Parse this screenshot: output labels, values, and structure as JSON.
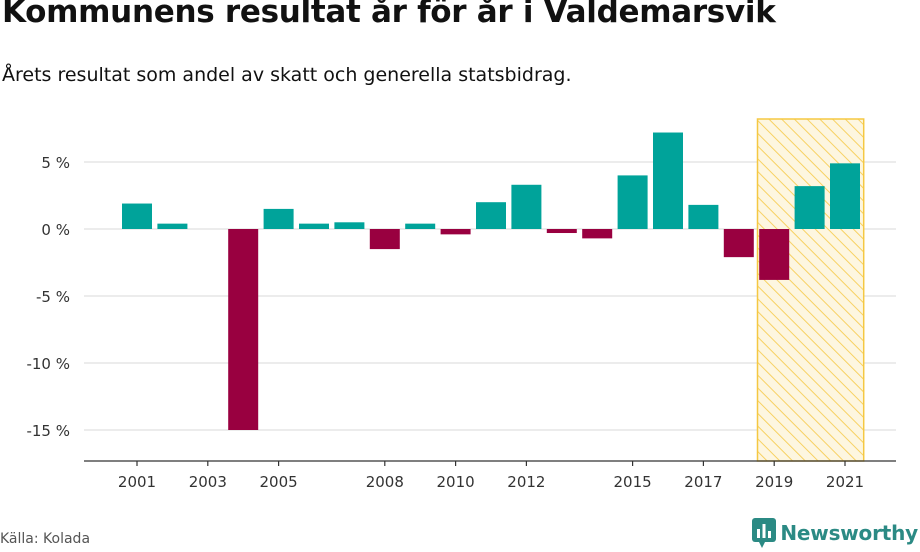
{
  "title": "Kommunens resultat år för år i Valdemarsvik",
  "subtitle": "Årets resultat som andel av skatt och generella statsbidrag.",
  "source": "Källa: Kolada",
  "brand": "Newsworthy",
  "colors": {
    "positive": "#00a39a",
    "negative": "#990040",
    "highlight": "#f5c842",
    "grid": "#d9d9d9",
    "brand": "#2b8a84"
  },
  "chart_data": {
    "type": "bar",
    "categories": [
      "2001",
      "2002",
      "2003",
      "2004",
      "2005",
      "2006",
      "2007",
      "2008",
      "2009",
      "2010",
      "2011",
      "2012",
      "2013",
      "2014",
      "2015",
      "2016",
      "2017",
      "2018",
      "2019",
      "2020",
      "2021"
    ],
    "values": [
      1.9,
      0.4,
      0,
      -15.0,
      1.5,
      0.4,
      0.5,
      -1.5,
      0.4,
      -0.4,
      2.0,
      3.3,
      -0.3,
      -0.7,
      4.0,
      7.2,
      1.8,
      -2.1,
      -3.8,
      3.2,
      4.9
    ],
    "x_tick_labels": [
      "2001",
      "2003",
      "2005",
      "2008",
      "2010",
      "2012",
      "2015",
      "2017",
      "2019",
      "2021"
    ],
    "y_ticks": [
      5,
      0,
      -5,
      -10,
      -15
    ],
    "y_tick_labels": [
      "5 %",
      "0 %",
      "-5 %",
      "-10 %",
      "-15 %"
    ],
    "ylim": [
      -17.3,
      8.2
    ],
    "highlight_range": [
      "2019",
      "2021"
    ],
    "grid": "horizontal",
    "xlabel": "",
    "ylabel": ""
  }
}
